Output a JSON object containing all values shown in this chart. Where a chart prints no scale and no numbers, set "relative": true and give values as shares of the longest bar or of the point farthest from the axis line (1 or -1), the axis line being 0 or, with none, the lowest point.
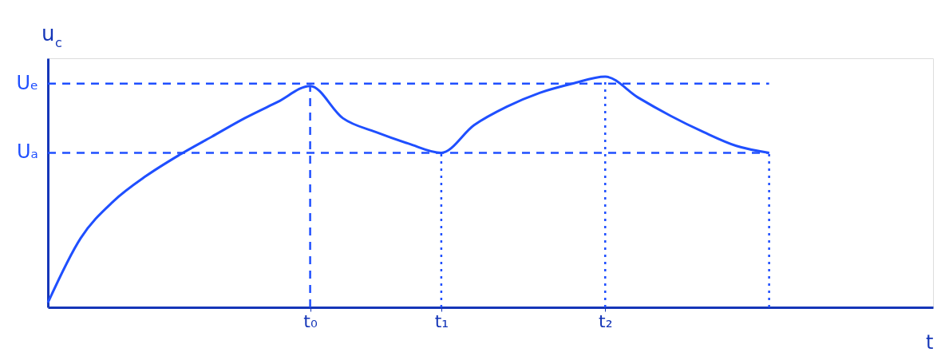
{
  "chart_data": {
    "type": "line",
    "relative": true,
    "xlabel": "t",
    "ylabel": "u$_{c}$",
    "categories": [
      null,
      null,
      null,
      null,
      null,
      null,
      null,
      null,
      "t₀",
      null,
      null,
      null,
      "t₁",
      null,
      null,
      null,
      null,
      "t₂",
      null,
      null,
      null,
      null,
      null,
      null,
      null,
      null,
      null,
      null
    ],
    "series": [
      {
        "color": "#1f4fff",
        "values": [
          0.02,
          0.3,
          0.46,
          0.57,
          0.66,
          0.74,
          0.82,
          0.89,
          0.96,
          0.82,
          0.76,
          0.71,
          0.67,
          0.79,
          0.87,
          0.93,
          0.97,
          1.0,
          0.91,
          0.83,
          0.76,
          0.7,
          0.67,
          null,
          null,
          null,
          null,
          null
        ]
      }
    ],
    "ref_lines": [
      {
        "axis": "y",
        "value": 0.97,
        "label": "Uₑ",
        "color": "#1f4fff",
        "line_style": "dashed"
      },
      {
        "axis": "y",
        "value": 0.67,
        "label": "Uₐ",
        "color": "#1f4fff",
        "line_style": "dashed"
      },
      {
        "axis": "x",
        "value": "t₀",
        "color": "#1f4fff",
        "line_style": "dashed"
      },
      {
        "axis": "x",
        "value": "t₁",
        "color": "#1f4fff",
        "line_style": "dotted"
      },
      {
        "axis": "x",
        "value": "t₂",
        "color": "#1f4fff",
        "line_style": "dotted"
      }
    ],
    "grid": false,
    "marker": "none",
    "line_style": "solid"
  }
}
